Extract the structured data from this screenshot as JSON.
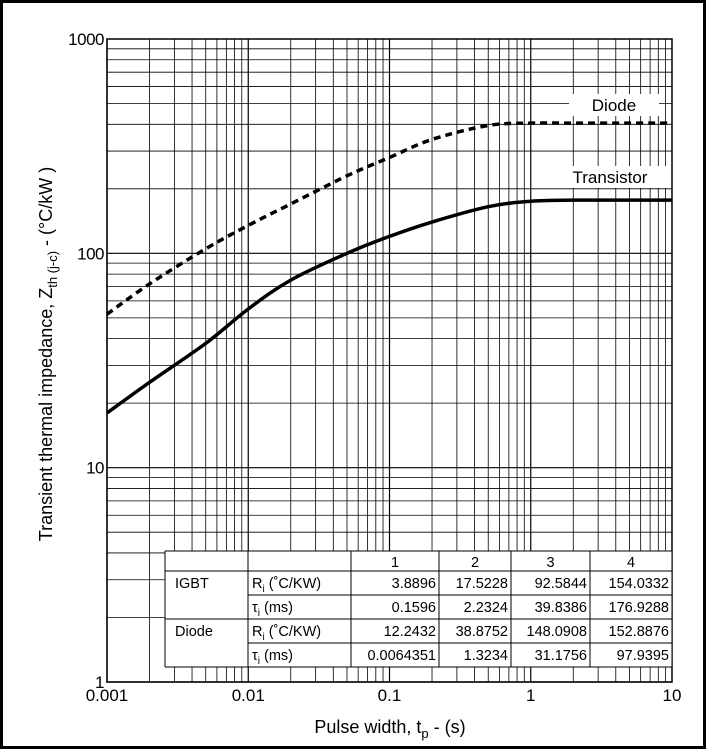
{
  "chart_data": {
    "type": "line",
    "title": "",
    "xlabel": "Pulse width, t",
    "xlabel_sub": "p",
    "xlabel_suffix": " - (s)",
    "ylabel": "Transient thermal impedance, Z",
    "ylabel_sub": "th (j-c)",
    "ylabel_suffix": " - (°C/kW )",
    "x_scale": "log",
    "y_scale": "log",
    "xlim": [
      0.001,
      10
    ],
    "ylim": [
      1,
      1000
    ],
    "grid": true,
    "x_ticks": [
      "0.001",
      "0.01",
      "0.1",
      "1",
      "10"
    ],
    "y_ticks": [
      "1",
      "10",
      "100",
      "1000"
    ],
    "series": [
      {
        "name": "Diode",
        "style": "dashed",
        "x": [
          0.001,
          0.002,
          0.005,
          0.01,
          0.02,
          0.05,
          0.1,
          0.2,
          0.5,
          1,
          2,
          5,
          10
        ],
        "y": [
          52,
          72,
          105,
          135,
          170,
          230,
          280,
          340,
          395,
          405,
          405,
          405,
          405
        ]
      },
      {
        "name": "Transistor",
        "style": "solid",
        "x": [
          0.001,
          0.002,
          0.005,
          0.01,
          0.02,
          0.05,
          0.1,
          0.2,
          0.5,
          1,
          2,
          5,
          10
        ],
        "y": [
          18,
          25,
          38,
          55,
          75,
          100,
          120,
          140,
          165,
          175,
          177,
          177,
          177
        ]
      }
    ],
    "table": {
      "header": [
        "",
        "",
        "1",
        "2",
        "3",
        "4"
      ],
      "rows": [
        {
          "device": "IGBT",
          "param": "R",
          "param_sub": "i",
          "param_unit": " (˚C/KW)",
          "values": [
            "3.8896",
            "17.5228",
            "92.5844",
            "154.0332"
          ]
        },
        {
          "device": "",
          "param": "τ",
          "param_sub": "i",
          "param_unit": " (ms)",
          "values": [
            "0.1596",
            "2.2324",
            "39.8386",
            "176.9288"
          ]
        },
        {
          "device": "Diode",
          "param": "R",
          "param_sub": "i",
          "param_unit": " (˚C/KW)",
          "values": [
            "12.2432",
            "38.8752",
            "148.0908",
            "152.8876"
          ]
        },
        {
          "device": "",
          "param": "τ",
          "param_sub": "i",
          "param_unit": " (ms)",
          "values": [
            "0.0064351",
            "1.3234",
            "31.1756",
            "97.9395"
          ]
        }
      ]
    }
  }
}
